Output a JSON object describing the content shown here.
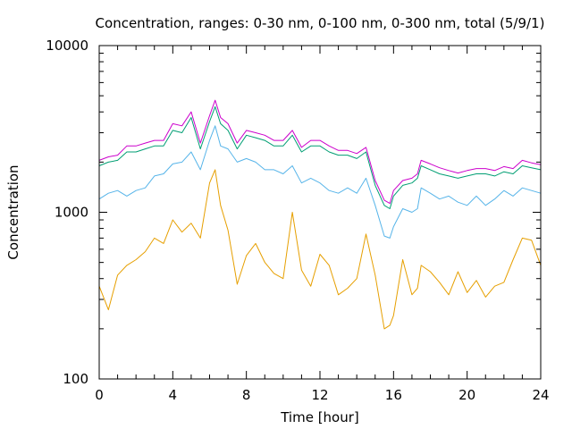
{
  "chart_data": {
    "type": "line",
    "title": "Concentration, ranges: 0-30 nm, 0-100 nm, 0-300 nm, total (5/9/1)",
    "xlabel": "Time [hour]",
    "ylabel": "Concentration",
    "xlim": [
      0,
      24
    ],
    "ylim": [
      100,
      10000
    ],
    "yscale": "log",
    "grid": false,
    "legend": "none",
    "xticks": [
      "0",
      "4",
      "8",
      "12",
      "16",
      "20",
      "24"
    ],
    "yticks": [
      "100",
      "1000",
      "10000"
    ],
    "x": [
      0,
      0.5,
      1,
      1.5,
      2,
      2.5,
      3,
      3.5,
      4,
      4.5,
      5,
      5.5,
      6,
      6.3,
      6.6,
      7,
      7.5,
      8,
      8.5,
      9,
      9.5,
      10,
      10.5,
      11,
      11.5,
      12,
      12.5,
      13,
      13.5,
      14,
      14.5,
      15,
      15.5,
      15.8,
      16,
      16.5,
      17,
      17.3,
      17.5,
      18,
      18.5,
      19,
      19.5,
      20,
      20.5,
      21,
      21.5,
      22,
      22.5,
      23,
      23.5,
      24
    ],
    "series": [
      {
        "color": "#e69f00",
        "values": [
          360,
          260,
          420,
          480,
          520,
          580,
          700,
          650,
          900,
          760,
          860,
          700,
          1500,
          1800,
          1100,
          780,
          370,
          550,
          650,
          500,
          430,
          400,
          1000,
          450,
          360,
          560,
          480,
          320,
          350,
          400,
          740,
          420,
          200,
          210,
          240,
          520,
          320,
          350,
          480,
          440,
          380,
          320,
          440,
          330,
          390,
          310,
          360,
          380,
          520,
          700,
          680,
          480
        ]
      },
      {
        "color": "#56b4e9",
        "values": [
          1200,
          1300,
          1350,
          1250,
          1350,
          1400,
          1650,
          1700,
          1950,
          2000,
          2300,
          1800,
          2700,
          3300,
          2500,
          2400,
          2000,
          2100,
          2000,
          1800,
          1800,
          1700,
          1900,
          1500,
          1600,
          1500,
          1350,
          1300,
          1400,
          1300,
          1600,
          1100,
          720,
          700,
          820,
          1050,
          1000,
          1050,
          1400,
          1300,
          1200,
          1250,
          1150,
          1100,
          1250,
          1100,
          1200,
          1350,
          1250,
          1400,
          1350,
          1300
        ]
      },
      {
        "color": "#009e73",
        "values": [
          1900,
          2000,
          2050,
          2300,
          2300,
          2400,
          2500,
          2500,
          3100,
          3000,
          3700,
          2400,
          3500,
          4300,
          3400,
          3100,
          2400,
          2900,
          2800,
          2700,
          2500,
          2500,
          2900,
          2300,
          2500,
          2500,
          2300,
          2200,
          2200,
          2100,
          2300,
          1450,
          1100,
          1050,
          1250,
          1450,
          1500,
          1600,
          1900,
          1800,
          1700,
          1650,
          1600,
          1650,
          1700,
          1700,
          1650,
          1750,
          1700,
          1900,
          1850,
          1800
        ]
      },
      {
        "color": "#cc00cc",
        "values": [
          2050,
          2150,
          2200,
          2500,
          2500,
          2600,
          2700,
          2700,
          3400,
          3300,
          4000,
          2600,
          3800,
          4700,
          3700,
          3400,
          2600,
          3100,
          3000,
          2900,
          2700,
          2700,
          3100,
          2450,
          2700,
          2700,
          2500,
          2350,
          2350,
          2250,
          2450,
          1550,
          1180,
          1130,
          1350,
          1550,
          1600,
          1700,
          2050,
          1950,
          1850,
          1780,
          1720,
          1780,
          1830,
          1830,
          1780,
          1880,
          1830,
          2050,
          1980,
          1930
        ]
      }
    ]
  }
}
